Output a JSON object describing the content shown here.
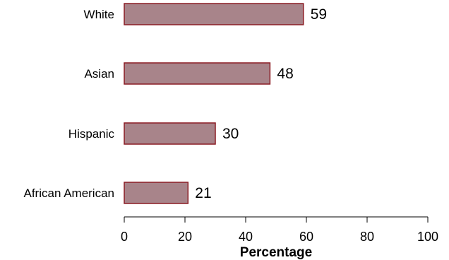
{
  "chart_data": {
    "type": "bar",
    "orientation": "horizontal",
    "categories": [
      "White",
      "Asian",
      "Hispanic",
      "African American"
    ],
    "values": [
      59,
      48,
      30,
      21
    ],
    "data_labels": [
      "59",
      "48",
      "30",
      "21"
    ],
    "xlabel": "Percentage",
    "ylabel": "",
    "xlim": [
      0,
      100
    ],
    "xticks": [
      "0",
      "20",
      "40",
      "60",
      "80",
      "100"
    ],
    "grid": false,
    "legend": "none",
    "colors": {
      "bar_fill": "#a8848a",
      "bar_stroke": "#8b1c24",
      "axis": "#000000"
    }
  }
}
